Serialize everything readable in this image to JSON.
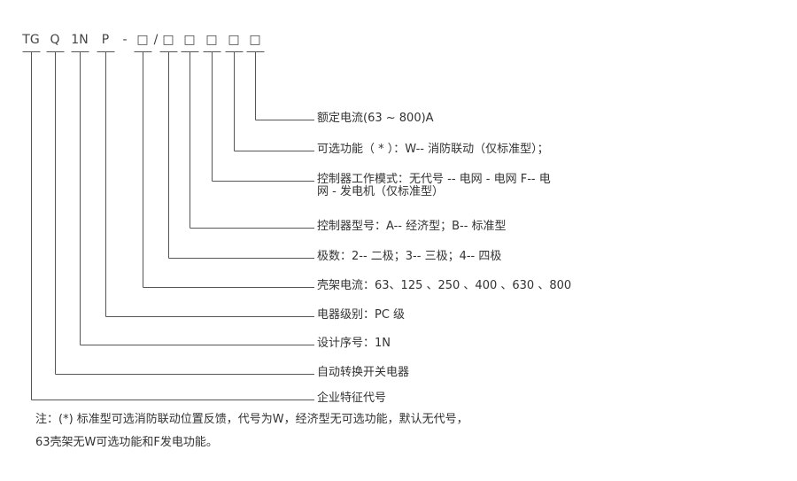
{
  "code_segments": [
    "TG",
    "Q",
    "1N",
    "P",
    "-",
    "□",
    "/",
    "□",
    "□",
    "□",
    "□",
    "□"
  ],
  "descriptions": [
    [
      "额定电流(63 ~ 800)A"
    ],
    [
      "可选功能（ * ）：W-- 消防联动（仅标准型）；"
    ],
    [
      "控制器工作模式：无代号 -- 电网 - 电网 F-- 电",
      "网 - 发电机（仅标准型）"
    ],
    [
      "控制器型号：A-- 经济型；B-- 标准型"
    ],
    [
      "极数：2-- 二极；3-- 三极；4-- 四极"
    ],
    [
      "壳架电流：63、125 、250 、400 、630 、800"
    ],
    [
      "电器级别：PC 级"
    ],
    [
      "设计序号：1N"
    ],
    [
      "自动转换开关电器"
    ],
    [
      "企业特征代号"
    ]
  ],
  "notes": [
    "注：(*) 标准型可选消防联动位置反馈，代号为W，经济型无可选功能，默认无代号，",
    "63壳架无W可选功能和F发电功能。"
  ],
  "line_color": "#555555"
}
